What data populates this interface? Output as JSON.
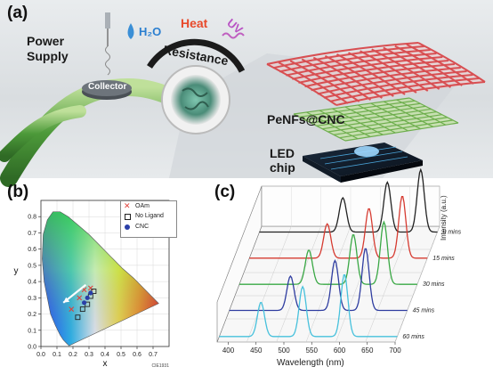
{
  "panel_a": {
    "label": "(a)",
    "power_supply": "Power\nSupply",
    "collector": "Collector",
    "h2o": "H₂O",
    "heat": "Heat",
    "uv": "UV",
    "resistance": "Resistance",
    "penfs": "PeNFs@CNC",
    "led": "LED\nchip"
  },
  "panel_b": {
    "label": "(b)",
    "xlabel": "x",
    "ylabel": "y",
    "footer": "CIE1931",
    "legend": [
      {
        "name": "OAm",
        "marker": "x",
        "color": "#e0403a"
      },
      {
        "name": "No Ligand",
        "marker": "square",
        "color": "#222222"
      },
      {
        "name": "CNC",
        "marker": "circle",
        "color": "#2a3fa8"
      }
    ],
    "x_ticks": [
      "0.0",
      "0.1",
      "0.2",
      "0.3",
      "0.4",
      "0.5",
      "0.6",
      "0.7"
    ],
    "y_ticks": [
      "0.0",
      "0.1",
      "0.2",
      "0.3",
      "0.4",
      "0.5",
      "0.6",
      "0.7",
      "0.8"
    ]
  },
  "panel_c": {
    "label": "(c)",
    "xlabel": "Wavelength (nm)",
    "zlabel": "Intensity (a.u.)",
    "x_ticks": [
      "400",
      "450",
      "500",
      "550",
      "600",
      "650",
      "700"
    ],
    "time_labels": [
      "0 mins",
      "15 mins",
      "30 mins",
      "45 mins",
      "60 mins"
    ]
  },
  "chart_data": [
    {
      "type": "scatter",
      "title": "",
      "xlabel": "x",
      "ylabel": "y",
      "xlim": [
        0.0,
        0.8
      ],
      "ylim": [
        0.0,
        0.9
      ],
      "series": [
        {
          "name": "OAm",
          "color": "#e0403a",
          "x": [
            0.19,
            0.24,
            0.27,
            0.31
          ],
          "y": [
            0.23,
            0.3,
            0.35,
            0.36
          ]
        },
        {
          "name": "No Ligand",
          "color": "#222222",
          "x": [
            0.23,
            0.26,
            0.29,
            0.31,
            0.33
          ],
          "y": [
            0.18,
            0.23,
            0.26,
            0.31,
            0.34
          ]
        },
        {
          "name": "CNC",
          "color": "#2a3fa8",
          "x": [
            0.27,
            0.29,
            0.31
          ],
          "y": [
            0.27,
            0.3,
            0.33
          ]
        }
      ]
    },
    {
      "type": "line",
      "title": "",
      "xlabel": "Wavelength (nm)",
      "ylabel": "Intensity (a.u.)",
      "xlim": [
        380,
        700
      ],
      "series": [
        {
          "name": "0 mins",
          "color": "#222222",
          "peaks": [
            530,
            610,
            670
          ]
        },
        {
          "name": "15 mins",
          "color": "#d63b31",
          "peaks": [
            520,
            595,
            655
          ]
        },
        {
          "name": "30 mins",
          "color": "#3aa845",
          "peaks": [
            505,
            585,
            640
          ]
        },
        {
          "name": "45 mins",
          "color": "#2f3da0",
          "peaks": [
            490,
            570,
            625
          ]
        },
        {
          "name": "60 mins",
          "color": "#47c1dc",
          "peaks": [
            455,
            530,
            605
          ]
        }
      ]
    }
  ]
}
